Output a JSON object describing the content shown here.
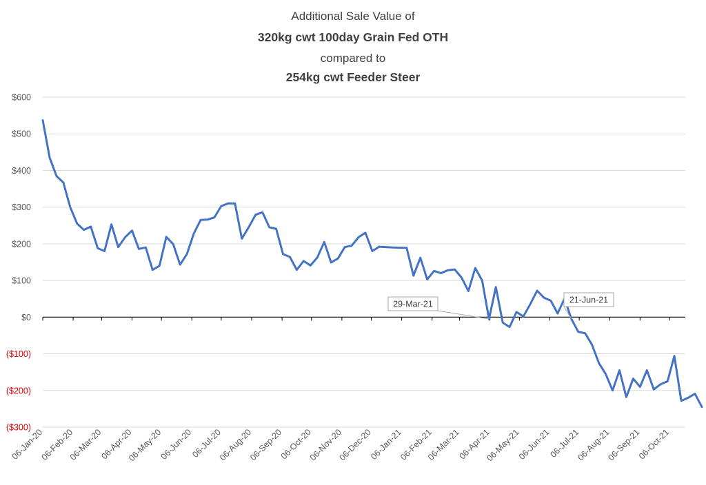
{
  "chart_data": {
    "type": "line",
    "title_lines": [
      {
        "text": "Additional Sale Value of",
        "bold": false
      },
      {
        "text": "320kg cwt 100day Grain Fed OTH",
        "bold": true
      },
      {
        "text": "compared to",
        "bold": false
      },
      {
        "text": "254kg cwt Feeder Steer",
        "bold": true
      }
    ],
    "xlabel": "",
    "ylabel": "",
    "ylim": [
      -300,
      600
    ],
    "y_step": 100,
    "y_tick_labels": [
      "$600",
      "$500",
      "$400",
      "$300",
      "$200",
      "$100",
      "$0",
      "($100)",
      "($200)",
      "($300)"
    ],
    "y_tick_values": [
      600,
      500,
      400,
      300,
      200,
      100,
      0,
      -100,
      -200,
      -300
    ],
    "negative_label_color": "#e00000",
    "line_color": "#4472c4",
    "grid": true,
    "legend": "none",
    "x_tick_labels": [
      "06-Jan-20",
      "06-Feb-20",
      "06-Mar-20",
      "06-Apr-20",
      "06-May-20",
      "06-Jun-20",
      "06-Jul-20",
      "06-Aug-20",
      "06-Sep-20",
      "06-Oct-20",
      "06-Nov-20",
      "06-Dec-20",
      "06-Jan-21",
      "06-Feb-21",
      "06-Mar-21",
      "06-Apr-21",
      "06-May-21",
      "06-Jun-21",
      "06-Jul-21",
      "06-Aug-21",
      "06-Sep-21",
      "06-Oct-21"
    ],
    "x_range": [
      "2020-01-06",
      "2021-11-01"
    ],
    "series": [
      {
        "points": [
          [
            "2020-01-06",
            537
          ],
          [
            "2020-01-13",
            435
          ],
          [
            "2020-01-20",
            385
          ],
          [
            "2020-01-27",
            367
          ],
          [
            "2020-02-03",
            300
          ],
          [
            "2020-02-10",
            255
          ],
          [
            "2020-02-17",
            238
          ],
          [
            "2020-02-24",
            247
          ],
          [
            "2020-03-02",
            188
          ],
          [
            "2020-03-09",
            180
          ],
          [
            "2020-03-16",
            253
          ],
          [
            "2020-03-23",
            191
          ],
          [
            "2020-03-30",
            218
          ],
          [
            "2020-04-06",
            236
          ],
          [
            "2020-04-13",
            186
          ],
          [
            "2020-04-20",
            190
          ],
          [
            "2020-04-27",
            129
          ],
          [
            "2020-05-04",
            140
          ],
          [
            "2020-05-11",
            219
          ],
          [
            "2020-05-18",
            199
          ],
          [
            "2020-05-25",
            143
          ],
          [
            "2020-06-01",
            172
          ],
          [
            "2020-06-08",
            228
          ],
          [
            "2020-06-15",
            265
          ],
          [
            "2020-06-22",
            266
          ],
          [
            "2020-06-29",
            272
          ],
          [
            "2020-07-06",
            303
          ],
          [
            "2020-07-13",
            310
          ],
          [
            "2020-07-20",
            310
          ],
          [
            "2020-07-27",
            214
          ],
          [
            "2020-08-03",
            245
          ],
          [
            "2020-08-10",
            279
          ],
          [
            "2020-08-17",
            286
          ],
          [
            "2020-08-24",
            245
          ],
          [
            "2020-08-31",
            241
          ],
          [
            "2020-09-07",
            172
          ],
          [
            "2020-09-14",
            164
          ],
          [
            "2020-09-21",
            129
          ],
          [
            "2020-09-28",
            153
          ],
          [
            "2020-10-05",
            141
          ],
          [
            "2020-10-12",
            163
          ],
          [
            "2020-10-19",
            205
          ],
          [
            "2020-10-26",
            149
          ],
          [
            "2020-11-02",
            160
          ],
          [
            "2020-11-09",
            191
          ],
          [
            "2020-11-16",
            195
          ],
          [
            "2020-11-23",
            218
          ],
          [
            "2020-11-30",
            230
          ],
          [
            "2020-12-07",
            180
          ],
          [
            "2020-12-14",
            192
          ],
          [
            "2020-12-28",
            190
          ],
          [
            "2021-01-11",
            189
          ],
          [
            "2021-01-18",
            113
          ],
          [
            "2021-01-25",
            162
          ],
          [
            "2021-02-01",
            103
          ],
          [
            "2021-02-08",
            126
          ],
          [
            "2021-02-15",
            120
          ],
          [
            "2021-02-22",
            128
          ],
          [
            "2021-03-01",
            130
          ],
          [
            "2021-03-08",
            108
          ],
          [
            "2021-03-15",
            71
          ],
          [
            "2021-03-22",
            134
          ],
          [
            "2021-03-29",
            100
          ],
          [
            "2021-04-05",
            -5
          ],
          [
            "2021-04-12",
            82
          ],
          [
            "2021-04-19",
            -15
          ],
          [
            "2021-04-26",
            -27
          ],
          [
            "2021-05-03",
            14
          ],
          [
            "2021-05-10",
            2
          ],
          [
            "2021-05-17",
            35
          ],
          [
            "2021-05-24",
            72
          ],
          [
            "2021-05-31",
            53
          ],
          [
            "2021-06-07",
            45
          ],
          [
            "2021-06-14",
            10
          ],
          [
            "2021-06-21",
            51
          ],
          [
            "2021-06-28",
            -5
          ],
          [
            "2021-07-05",
            -40
          ],
          [
            "2021-07-12",
            -44
          ],
          [
            "2021-07-19",
            -75
          ],
          [
            "2021-07-26",
            -125
          ],
          [
            "2021-08-02",
            -155
          ],
          [
            "2021-08-09",
            -200
          ],
          [
            "2021-08-16",
            -145
          ],
          [
            "2021-08-23",
            -218
          ],
          [
            "2021-08-30",
            -168
          ],
          [
            "2021-09-06",
            -190
          ],
          [
            "2021-09-13",
            -145
          ],
          [
            "2021-09-20",
            -197
          ],
          [
            "2021-09-27",
            -183
          ],
          [
            "2021-10-04",
            -175
          ],
          [
            "2021-10-11",
            -106
          ],
          [
            "2021-10-18",
            -228
          ],
          [
            "2021-10-25",
            -220
          ],
          [
            "2021-11-01",
            -209
          ],
          [
            "2021-11-08",
            -245
          ]
        ]
      }
    ],
    "annotations": [
      {
        "text": "29-Mar-21",
        "date": "2021-04-05",
        "value": -5,
        "side": "left"
      },
      {
        "text": "21-Jun-21",
        "date": "2021-06-28",
        "value": -5,
        "side": "right"
      }
    ]
  }
}
